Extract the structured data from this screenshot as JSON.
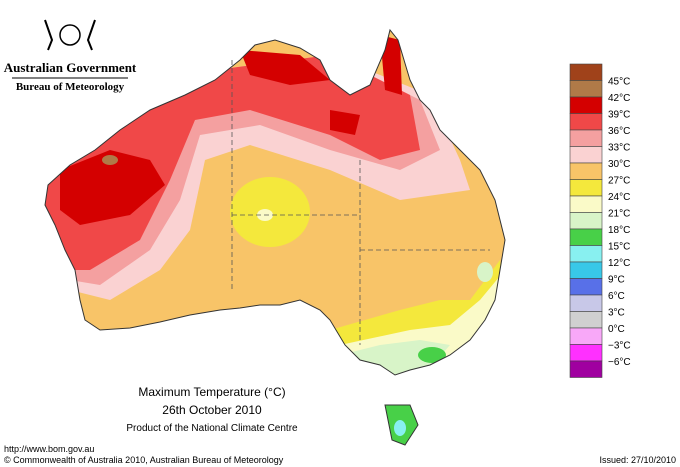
{
  "header": {
    "agency": "Australian Government",
    "bureau": "Bureau of Meteorology"
  },
  "legend": {
    "labels": [
      "45°C",
      "42°C",
      "39°C",
      "36°C",
      "33°C",
      "30°C",
      "27°C",
      "24°C",
      "21°C",
      "18°C",
      "15°C",
      "12°C",
      "9°C",
      "6°C",
      "3°C",
      "0°C",
      "−3°C",
      "−6°C"
    ],
    "colors": [
      "#a0421a",
      "#b07a48",
      "#d40000",
      "#f04848",
      "#f4a0a0",
      "#fad2d2",
      "#f8c468",
      "#f4e83c",
      "#fafac8",
      "#d8f4c8",
      "#48d048",
      "#88f0f0",
      "#38c8e8",
      "#5870e8",
      "#c8c8e8",
      "#d0d0d0",
      "#f8a8f8",
      "#ff30ff",
      "#a000a0"
    ]
  },
  "caption": {
    "title": "Maximum Temperature (°C)",
    "date": "26th October 2010",
    "product": "Product of the National Climate Centre"
  },
  "footer": {
    "url": "http://www.bom.gov.au",
    "copyright": "© Commonwealth of Australia 2010, Australian Bureau of Meteorology",
    "issued": "Issued: 27/10/2010"
  }
}
